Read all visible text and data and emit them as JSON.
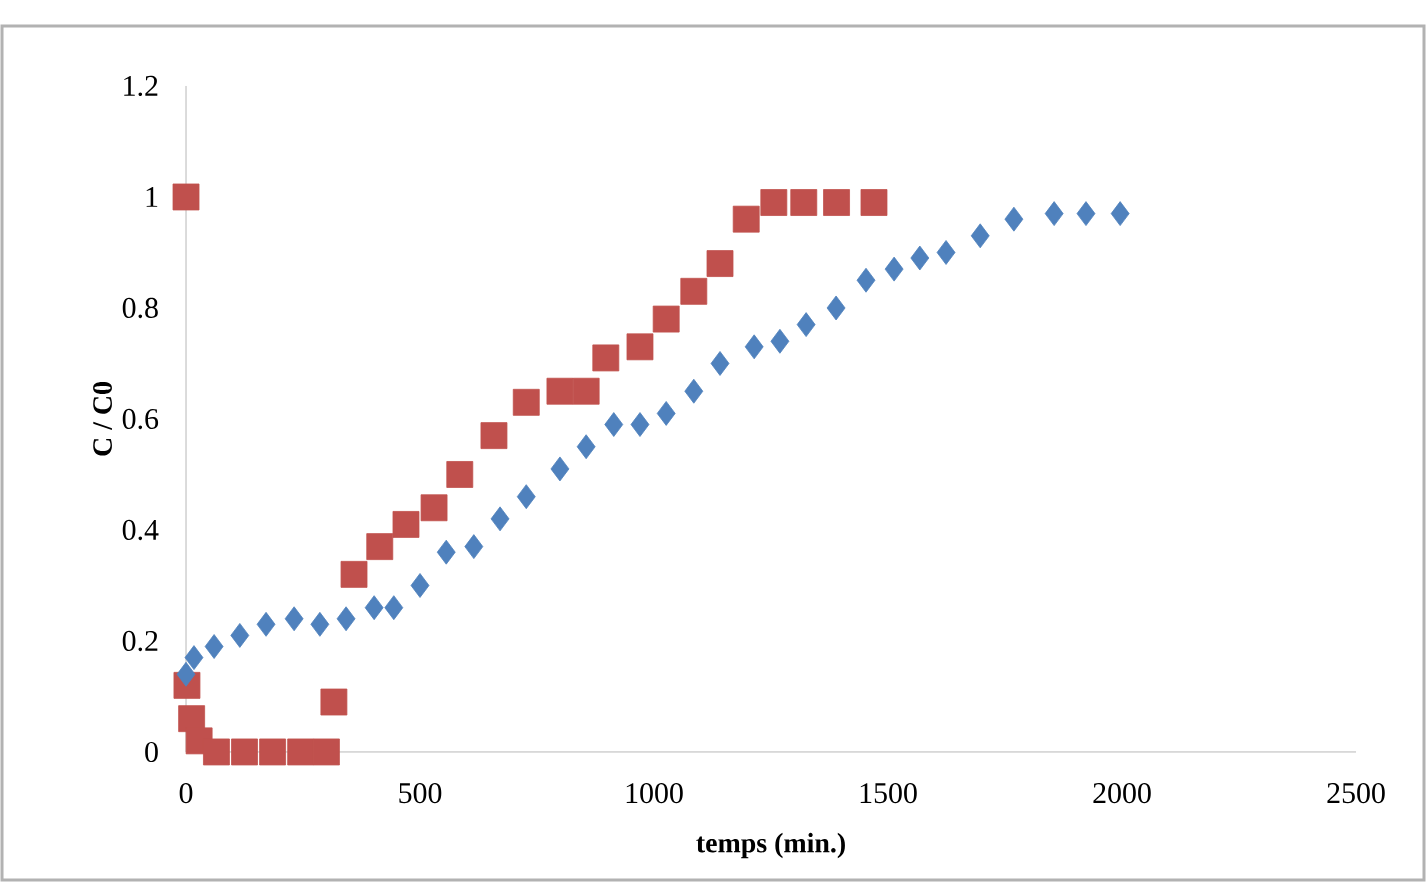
{
  "chart_data": {
    "type": "scatter",
    "xlabel": "temps (min.)",
    "ylabel": "C / C0",
    "xlim": [
      0,
      2500
    ],
    "ylim": [
      0,
      1.2
    ],
    "xticks": [
      0,
      500,
      1000,
      1500,
      2000,
      2500
    ],
    "yticks": [
      0,
      0.2,
      0.4,
      0.6,
      0.8,
      1,
      1.2
    ],
    "grid": false,
    "series": [
      {
        "color": "#4f81bd",
        "marker": "diamond",
        "x": [
          0,
          17,
          60,
          115,
          171,
          231,
          286,
          342,
          402,
          444,
          500,
          556,
          615,
          671,
          727,
          799,
          855,
          914,
          970,
          1026,
          1085,
          1141,
          1214,
          1269,
          1325,
          1389,
          1453,
          1513,
          1568,
          1624,
          1697,
          1769,
          1855,
          1923,
          1996
        ],
        "values": [
          0.14,
          0.17,
          0.19,
          0.21,
          0.23,
          0.24,
          0.23,
          0.24,
          0.26,
          0.26,
          0.3,
          0.36,
          0.37,
          0.42,
          0.46,
          0.51,
          0.55,
          0.59,
          0.59,
          0.61,
          0.65,
          0.7,
          0.73,
          0.74,
          0.77,
          0.8,
          0.85,
          0.87,
          0.89,
          0.9,
          0.93,
          0.96,
          0.97,
          0.97,
          0.97
        ]
      },
      {
        "color": "#c0504d",
        "marker": "square",
        "x": [
          0,
          2,
          12,
          28,
          65,
          125,
          185,
          245,
          300,
          316,
          359,
          414,
          470,
          530,
          585,
          658,
          727,
          799,
          855,
          897,
          970,
          1026,
          1085,
          1141,
          1197,
          1256,
          1320,
          1390,
          1470
        ],
        "values": [
          1.0,
          0.12,
          0.06,
          0.02,
          0,
          0,
          0,
          0,
          0,
          0.09,
          0.32,
          0.37,
          0.41,
          0.44,
          0.5,
          0.57,
          0.63,
          0.65,
          0.65,
          0.71,
          0.73,
          0.78,
          0.83,
          0.88,
          0.96,
          0.99,
          0.99,
          0.99,
          0.99
        ]
      }
    ]
  }
}
